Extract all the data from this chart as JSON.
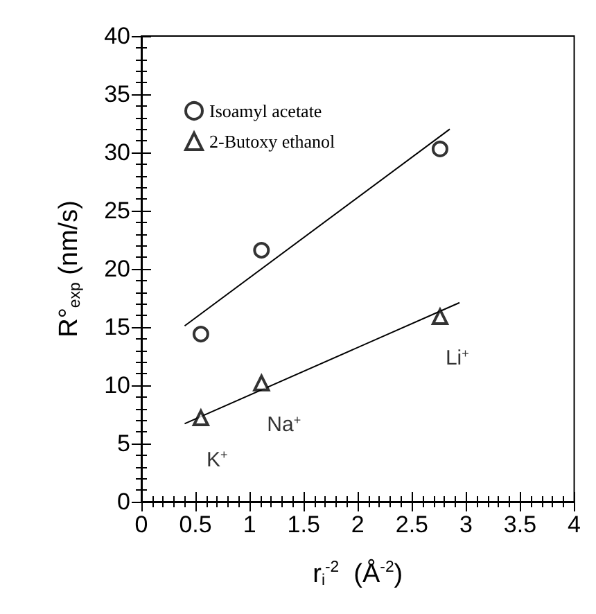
{
  "chart_data": {
    "type": "scatter",
    "xlabel": "r$_{i}$$^{-2}$  (Å$^{-2}$)",
    "ylabel": "R°$_{exp}$ (nm/s)",
    "xlim": [
      0,
      4
    ],
    "xticks": [
      0,
      0.5,
      1,
      1.5,
      2,
      2.5,
      3,
      3.5,
      4
    ],
    "ylim": [
      0,
      40
    ],
    "yticks": [
      0,
      5,
      10,
      15,
      20,
      25,
      30,
      35,
      40
    ],
    "grid": false,
    "legend": "top left",
    "series": [
      {
        "name": "Isoamyl acetate",
        "color": "#000000",
        "marker": "circle",
        "x": [
          0.55,
          1.11,
          2.76
        ],
        "values": [
          14.4,
          21.6,
          30.3
        ]
      },
      {
        "name": "2-Butoxy ethanol",
        "color": "#000000",
        "marker": "triangle",
        "x": [
          0.55,
          1.11,
          2.76
        ],
        "values": [
          7.2,
          10.2,
          15.9
        ]
      },
      {
        "type": "line",
        "color": "#000000",
        "marker": "none",
        "x": [
          0.4,
          2.85
        ],
        "values": [
          15.1,
          32.0
        ]
      },
      {
        "type": "line",
        "color": "#000000",
        "marker": "none",
        "x": [
          0.4,
          2.94
        ],
        "values": [
          6.7,
          17.1
        ]
      }
    ],
    "annotations": [
      {
        "text": "K$^{+}$",
        "x": 0.55,
        "y": 7.2
      },
      {
        "text": "Na$^{+}$",
        "x": 1.11,
        "y": 10.2
      },
      {
        "text": "Li$^{+}$",
        "x": 2.76,
        "y": 15.9
      }
    ]
  }
}
